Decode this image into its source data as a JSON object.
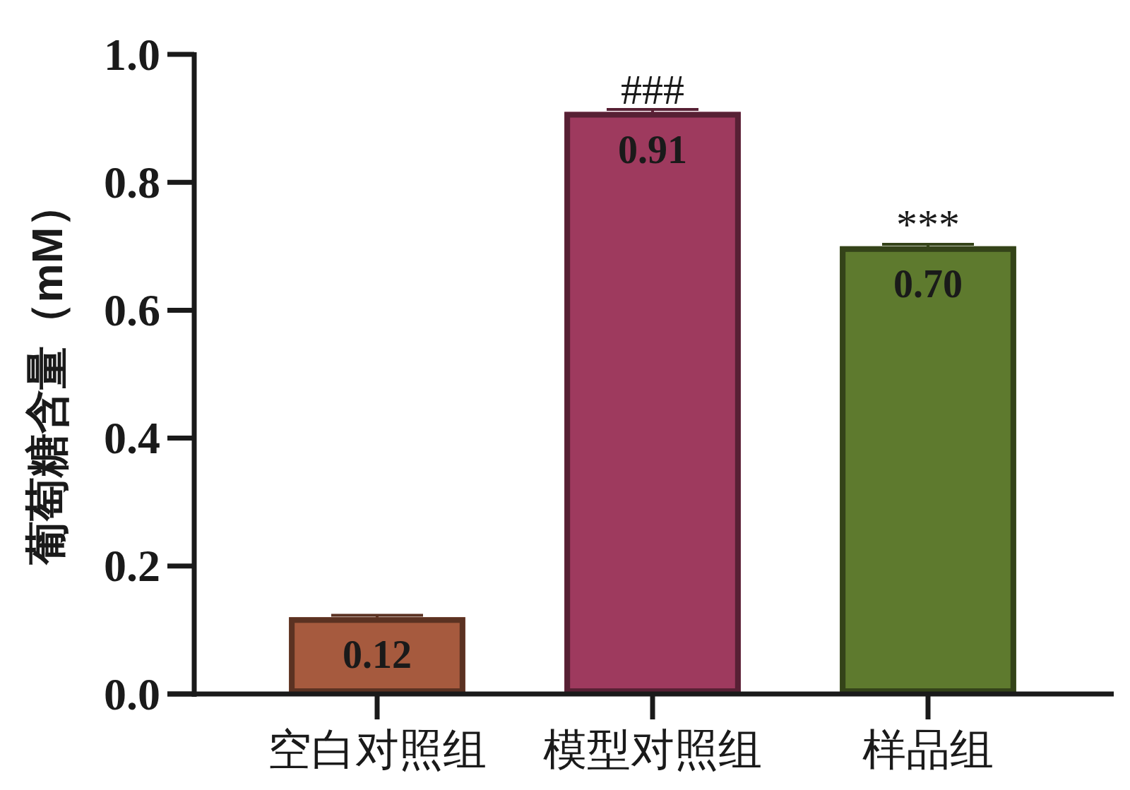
{
  "chart_data": {
    "type": "bar",
    "ylabel": "葡萄糖含量（mM）",
    "categories": [
      "空白对照组",
      "模型对照组",
      "样品组"
    ],
    "values": [
      0.12,
      0.91,
      0.7
    ],
    "errors": [
      0.003,
      0.004,
      0.003
    ],
    "colors": [
      "#a65a3e",
      "#9e3a5e",
      "#5e7a2e"
    ],
    "value_labels": [
      "0.12",
      "0.91",
      "0.70"
    ],
    "ylim": [
      0,
      1.0
    ],
    "yticks": [
      {
        "value": 0,
        "label": "0.0"
      },
      {
        "value": 0.2,
        "label": "0.2"
      },
      {
        "value": 0.4,
        "label": "0.4"
      },
      {
        "value": 0.6,
        "label": "0.6"
      },
      {
        "value": 0.8,
        "label": "0.8"
      },
      {
        "value": 1.0,
        "label": "1.0"
      }
    ],
    "grid": false,
    "annotations": [
      {
        "text": "###",
        "x": "模型对照组",
        "y": 0.914
      },
      {
        "text": "***",
        "x": "样品组",
        "y": 0.703
      }
    ]
  }
}
